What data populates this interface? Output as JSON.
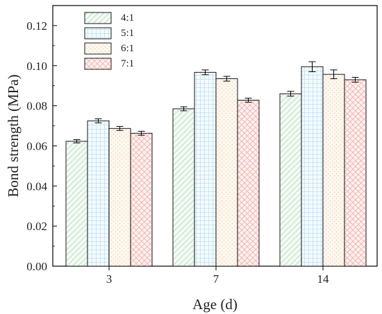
{
  "chart_data": {
    "type": "bar",
    "title": "",
    "xlabel": "Age (d)",
    "ylabel": "Bond strength (MPa)",
    "categories": [
      "3",
      "7",
      "14"
    ],
    "ylim": [
      0.0,
      0.13
    ],
    "yticks": [
      0.0,
      0.02,
      0.04,
      0.06,
      0.08,
      0.1,
      0.12
    ],
    "ytick_labels": [
      "0.00",
      "0.02",
      "0.04",
      "0.06",
      "0.08",
      "0.10",
      "0.12"
    ],
    "series": [
      {
        "name": "4:1",
        "values": [
          0.0623,
          0.0785,
          0.086
        ],
        "errors": [
          0.0008,
          0.001,
          0.0012
        ],
        "fill": "#eaf6ec",
        "stroke": "#a8d0b0",
        "pattern": "diagonal"
      },
      {
        "name": "5:1",
        "values": [
          0.0725,
          0.0967,
          0.0995
        ],
        "errors": [
          0.001,
          0.0012,
          0.0025
        ],
        "fill": "#e9f4fb",
        "stroke": "#a8d3ea",
        "pattern": "grid"
      },
      {
        "name": "6:1",
        "values": [
          0.0687,
          0.0935,
          0.0957
        ],
        "errors": [
          0.001,
          0.0012,
          0.0022
        ],
        "fill": "#fbf4ea",
        "stroke": "#e6d0b2",
        "pattern": "dots"
      },
      {
        "name": "7:1",
        "values": [
          0.0663,
          0.0828,
          0.093
        ],
        "errors": [
          0.001,
          0.001,
          0.0012
        ],
        "fill": "#fcebea",
        "stroke": "#f2b4b1",
        "pattern": "crosshatch"
      }
    ],
    "legend_placement": "top-left",
    "grid": false
  }
}
